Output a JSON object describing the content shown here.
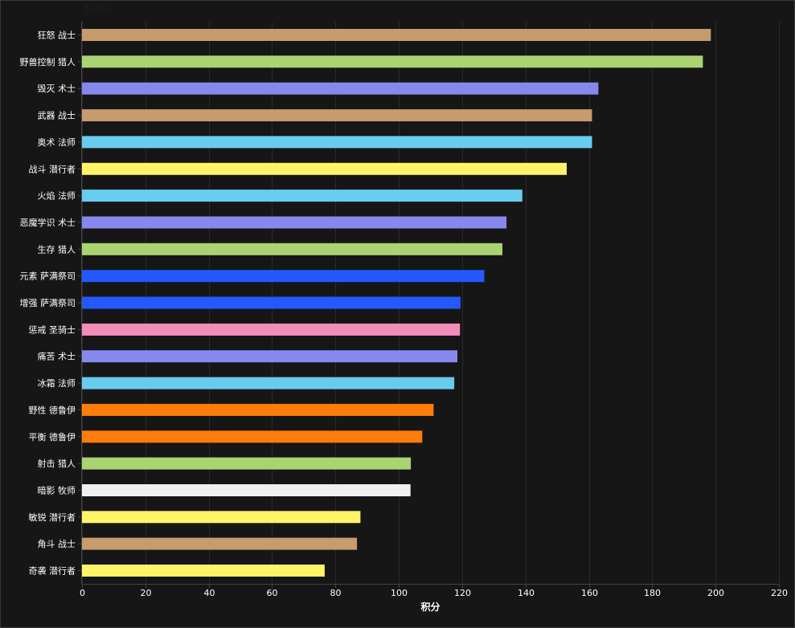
{
  "zoom_label": "Zoom",
  "chart_data": {
    "type": "bar",
    "orientation": "horizontal",
    "title": "",
    "xlabel": "积分",
    "ylabel": "",
    "xlim": [
      0,
      220
    ],
    "xticks": [
      0,
      20,
      40,
      60,
      80,
      100,
      120,
      140,
      160,
      180,
      200,
      220
    ],
    "grid": true,
    "categories": [
      "狂怒 战士",
      "野兽控制 猎人",
      "毁灭 术士",
      "武器 战士",
      "奥术 法师",
      "战斗 潜行者",
      "火焰 法师",
      "恶魔学识 术士",
      "生存 猎人",
      "元素 萨满祭司",
      "增强 萨满祭司",
      "惩戒 圣骑士",
      "痛苦 术士",
      "冰霜 法师",
      "野性 德鲁伊",
      "平衡 德鲁伊",
      "射击 猎人",
      "暗影 牧师",
      "敏锐 潜行者",
      "角斗 战士",
      "奇袭 潜行者"
    ],
    "values": [
      198.5,
      196,
      163,
      161,
      161,
      153,
      139,
      134,
      132.7,
      127,
      119.5,
      119.3,
      118.5,
      117.5,
      111,
      107.4,
      103.8,
      103.7,
      87.9,
      86.8,
      76.6
    ],
    "colors": [
      "#C69B6D",
      "#AAD372",
      "#8788EE",
      "#C69B6D",
      "#68CCEF",
      "#FFF468",
      "#68CCEF",
      "#8788EE",
      "#AAD372",
      "#2459FF",
      "#2459FF",
      "#F48CBA",
      "#8788EE",
      "#68CCEF",
      "#FF7C0A",
      "#FF7C0A",
      "#AAD372",
      "#F0F0F0",
      "#FFF468",
      "#C69B6D",
      "#FFF468"
    ]
  }
}
